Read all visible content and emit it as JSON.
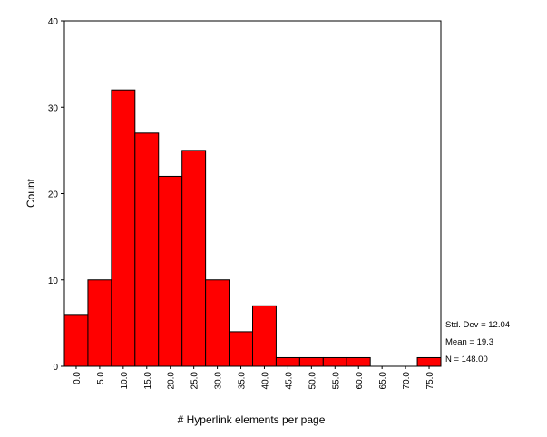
{
  "chart_data": {
    "type": "bar",
    "subtype": "histogram",
    "xlabel": "# Hyperlink elements per page",
    "ylabel": "Count",
    "categories": [
      "0.0",
      "5.0",
      "10.0",
      "15.0",
      "20.0",
      "25.0",
      "30.0",
      "35.0",
      "40.0",
      "45.0",
      "50.0",
      "55.0",
      "60.0",
      "65.0",
      "70.0",
      "75.0"
    ],
    "values": [
      6,
      10,
      32,
      27,
      22,
      25,
      10,
      4,
      7,
      1,
      1,
      1,
      1,
      0,
      0,
      1
    ],
    "ylim": [
      0,
      40
    ],
    "yticks": [
      "0",
      "10",
      "20",
      "30",
      "40"
    ],
    "grid": false,
    "bar_color": "#ff0000",
    "stats": {
      "std_dev": "Std. Dev = 12.04",
      "mean": "Mean = 19.3",
      "n": "N = 148.00"
    }
  }
}
